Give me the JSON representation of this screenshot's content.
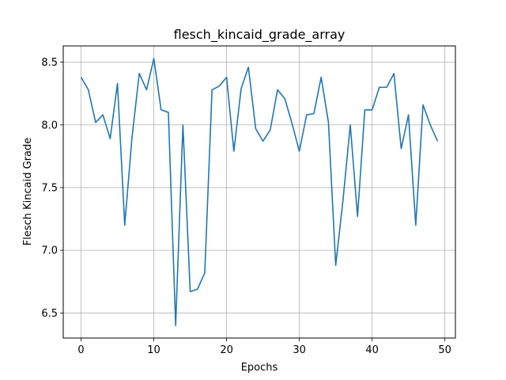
{
  "chart_data": {
    "type": "line",
    "title": "flesch_kincaid_grade_array",
    "xlabel": "Epochs",
    "ylabel": "Flesch Kincaid Grade",
    "xlim": [
      -2.45,
      51.45
    ],
    "ylim": [
      6.3,
      8.63
    ],
    "grid": true,
    "xticks": [
      0,
      10,
      20,
      30,
      40,
      50
    ],
    "xtick_labels": [
      "0",
      "10",
      "20",
      "30",
      "40",
      "50"
    ],
    "yticks": [
      6.5,
      7.0,
      7.5,
      8.0,
      8.5
    ],
    "ytick_labels": [
      "6.5",
      "7.0",
      "7.5",
      "8.0",
      "8.5"
    ],
    "line_color": "#1f77b4",
    "series": [
      {
        "x": [
          0,
          1,
          2,
          3,
          4,
          5,
          6,
          7,
          8,
          9,
          10,
          11,
          12,
          13,
          14,
          15,
          16,
          17,
          18,
          19,
          20,
          21,
          22,
          23,
          24,
          25,
          26,
          27,
          28,
          29,
          30,
          31,
          32,
          33,
          34,
          35,
          36,
          37,
          38,
          39,
          40,
          41,
          42,
          43,
          44,
          45,
          46,
          47,
          48,
          49
        ],
        "values": [
          8.38,
          8.28,
          8.02,
          8.08,
          7.89,
          8.33,
          7.2,
          7.9,
          8.41,
          8.28,
          8.53,
          8.12,
          8.1,
          6.4,
          8.0,
          6.67,
          6.69,
          6.82,
          8.28,
          8.31,
          8.38,
          7.79,
          8.29,
          8.46,
          7.97,
          7.87,
          7.96,
          8.28,
          8.21,
          8.01,
          7.79,
          8.08,
          8.09,
          8.38,
          8.02,
          6.88,
          7.4,
          8.0,
          7.27,
          8.12,
          8.12,
          8.3,
          8.3,
          8.41,
          7.81,
          8.08,
          7.2,
          8.16,
          8.0,
          7.87
        ]
      }
    ]
  }
}
